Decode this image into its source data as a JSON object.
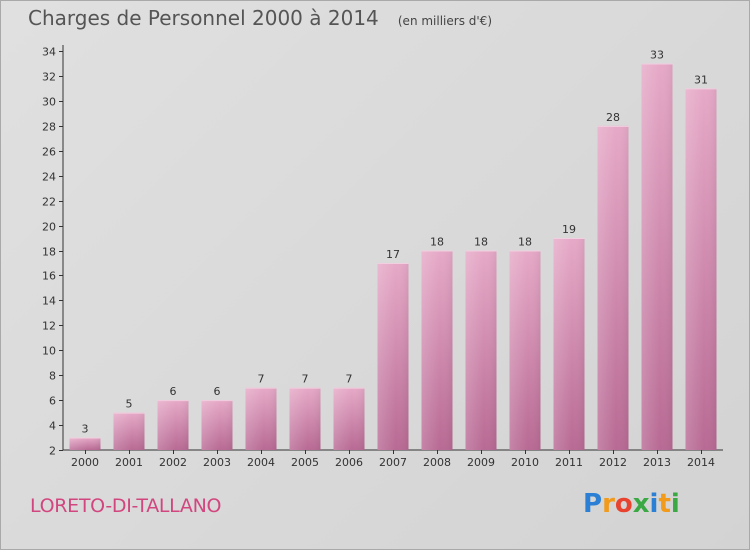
{
  "chart_data": {
    "type": "bar",
    "title": "Charges de Personnel 2000 à 2014",
    "subtitle": "(en milliers d'€)",
    "categories": [
      "2000",
      "2001",
      "2002",
      "2003",
      "2004",
      "2005",
      "2006",
      "2007",
      "2008",
      "2009",
      "2010",
      "2011",
      "2012",
      "2013",
      "2014"
    ],
    "values": [
      3,
      5,
      6,
      6,
      7,
      7,
      7,
      17,
      18,
      18,
      18,
      19,
      28,
      33,
      31
    ],
    "ylim": [
      2,
      34
    ],
    "yticks": [
      2,
      4,
      6,
      8,
      10,
      12,
      14,
      16,
      18,
      20,
      22,
      24,
      26,
      28,
      30,
      32,
      34
    ],
    "grid": false,
    "bar_color": "#d4819f"
  },
  "location": "LORETO-DI-TALLANO",
  "logo": {
    "letters": [
      "P",
      "r",
      "o",
      "x",
      "i",
      "t",
      "i"
    ],
    "colors": [
      "#2b7fd4",
      "#f29a1a",
      "#e8432f",
      "#3aa843",
      "#2b7fd4",
      "#f29a1a",
      "#3aa843"
    ]
  }
}
